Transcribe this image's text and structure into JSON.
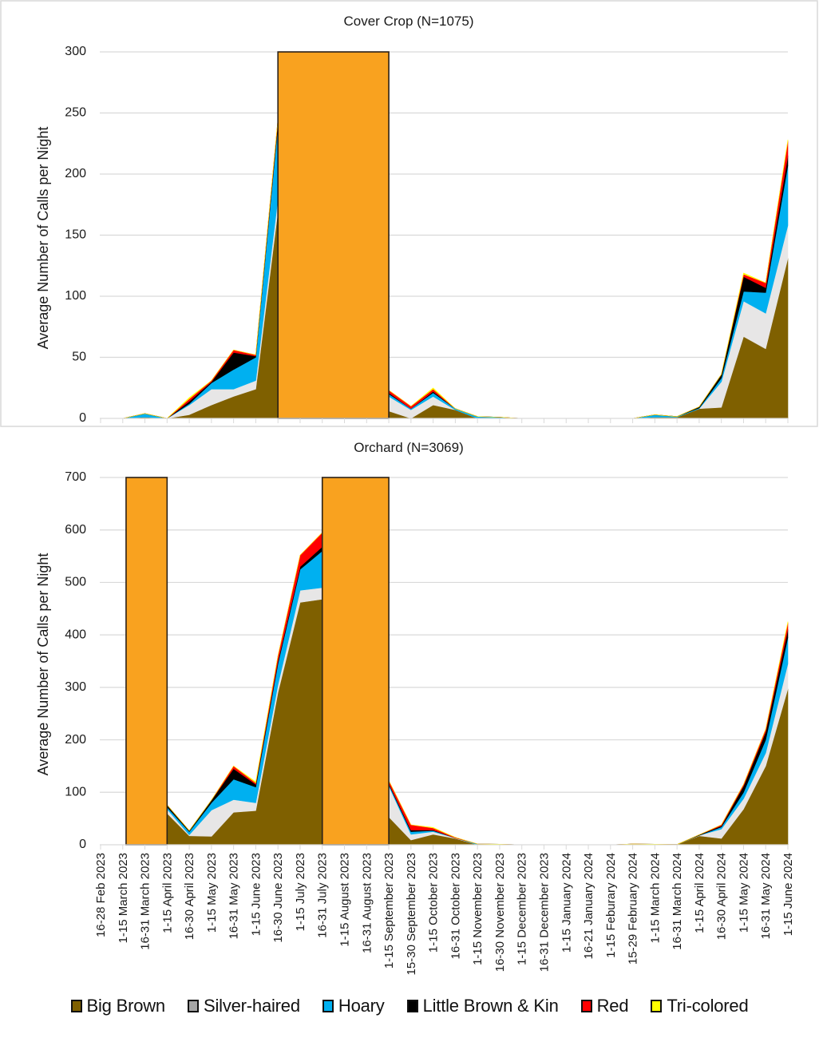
{
  "chart_data": [
    {
      "type": "area",
      "stacked": true,
      "title": "Cover Crop (N=1075)",
      "xlabel": "",
      "ylabel": "Average Number of Calls per Night",
      "ylim": [
        0,
        300
      ],
      "yticks": [
        0,
        50,
        100,
        150,
        200,
        250,
        300
      ],
      "grid": true,
      "no_data_spans": [
        {
          "from_category": 8,
          "to_category": 13,
          "top_value": 300
        }
      ],
      "series": [
        {
          "name": "Big Brown",
          "values": [
            null,
            0,
            1,
            0,
            3,
            11,
            18,
            24,
            170,
            null,
            null,
            null,
            null,
            6,
            0,
            11,
            7,
            0,
            0.5,
            0,
            0,
            0,
            0,
            0,
            0,
            1,
            1,
            8,
            9,
            67,
            57,
            131
          ]
        },
        {
          "name": "Silver-haired",
          "values": [
            null,
            0,
            0,
            0,
            8,
            13,
            6,
            7,
            10,
            null,
            null,
            null,
            null,
            12,
            7,
            7,
            0,
            0,
            0,
            0,
            0,
            0,
            0,
            0,
            0,
            0,
            0,
            0,
            21,
            29,
            29,
            27
          ]
        },
        {
          "name": "Hoary",
          "values": [
            null,
            0,
            3,
            0,
            1,
            5,
            16,
            19,
            60,
            null,
            null,
            null,
            null,
            2,
            1,
            3,
            1,
            1.5,
            0.5,
            0,
            0,
            0,
            0,
            0,
            0,
            2,
            0.5,
            0.5,
            3,
            8,
            17,
            49
          ]
        },
        {
          "name": "Little Brown & Kin",
          "values": [
            null,
            0,
            0,
            0,
            2,
            1,
            14,
            1,
            3,
            null,
            null,
            null,
            null,
            1,
            0,
            1,
            0,
            0,
            0,
            0,
            0,
            0,
            0,
            0,
            0,
            0,
            0,
            1,
            3,
            12,
            4,
            8
          ]
        },
        {
          "name": "Red",
          "values": [
            null,
            0,
            0,
            0,
            2,
            1,
            2,
            1,
            2,
            null,
            null,
            null,
            null,
            2,
            2,
            2,
            0,
            0,
            0,
            0,
            0,
            0,
            0,
            0,
            0,
            0,
            0,
            0,
            0,
            2,
            4,
            12
          ]
        },
        {
          "name": "Tri-colored",
          "values": [
            null,
            0,
            0,
            0,
            1,
            0,
            0,
            0,
            0,
            null,
            null,
            null,
            null,
            0,
            0,
            1,
            0,
            0,
            0,
            0,
            0,
            0,
            0,
            0,
            0,
            0,
            0,
            0,
            0,
            1,
            0,
            1
          ]
        }
      ]
    },
    {
      "type": "area",
      "stacked": true,
      "title": "Orchard (N=3069)",
      "xlabel": "",
      "ylabel": "Average Number of Calls per Night",
      "ylim": [
        0,
        700
      ],
      "yticks": [
        0,
        100,
        200,
        300,
        400,
        500,
        600,
        700
      ],
      "grid": true,
      "no_data_spans": [
        {
          "from_category": 1.15,
          "to_category": 3,
          "top_value": 700
        },
        {
          "from_category": 10,
          "to_category": 13,
          "top_value": 700
        }
      ],
      "series": [
        {
          "name": "Big Brown",
          "values": [
            null,
            null,
            null,
            60,
            17,
            16,
            62,
            65,
            290,
            462,
            468,
            null,
            null,
            53,
            9,
            20,
            12,
            0,
            0,
            0,
            0,
            0,
            0,
            0,
            0,
            0.5,
            0.5,
            17,
            12,
            68,
            150,
            297
          ]
        },
        {
          "name": "Silver-haired",
          "values": [
            null,
            null,
            null,
            8,
            2,
            50,
            24,
            15,
            15,
            23,
            22,
            null,
            null,
            59,
            11,
            5,
            1,
            0,
            0,
            0,
            0,
            0,
            0,
            0,
            0,
            0,
            0,
            1,
            18,
            20,
            25,
            48
          ]
        },
        {
          "name": "Hoary",
          "values": [
            null,
            null,
            null,
            4,
            6,
            14,
            39,
            30,
            40,
            40,
            70,
            null,
            null,
            3,
            5,
            2,
            0,
            1.5,
            1,
            0,
            0,
            0,
            0,
            0,
            1.5,
            0.5,
            0,
            0,
            4,
            12,
            25,
            50
          ]
        },
        {
          "name": "Little Brown & Kin",
          "values": [
            null,
            null,
            null,
            4,
            2,
            5,
            20,
            5,
            5,
            5,
            8,
            null,
            null,
            2,
            3,
            1,
            0,
            0,
            0,
            0,
            0,
            0,
            0,
            0,
            0,
            0,
            0,
            1,
            2,
            12,
            15,
            15
          ]
        },
        {
          "name": "Red",
          "values": [
            null,
            null,
            null,
            0,
            0,
            0,
            5,
            3,
            10,
            22,
            27,
            null,
            null,
            5,
            10,
            4,
            1,
            0,
            0,
            0,
            0,
            0,
            0,
            0,
            0,
            0,
            0,
            0,
            2,
            3,
            5,
            13
          ]
        },
        {
          "name": "Tri-colored",
          "values": [
            null,
            null,
            null,
            0,
            0,
            0,
            0,
            2,
            0,
            0,
            0,
            null,
            null,
            0,
            0,
            1,
            0,
            0,
            0,
            0,
            0,
            0,
            0,
            0,
            0,
            0,
            0,
            0,
            0,
            0,
            0,
            2
          ]
        }
      ]
    }
  ],
  "categories": [
    "16-28 Feb 2023",
    "1-15 March 2023",
    "16-31 March 2023",
    "1-15 April 2023",
    "16-30 April 2023",
    "1-15 May 2023",
    "16-31 May 2023",
    "1-15 June 2023",
    "16-30 June 2023",
    "1-15 July 2023",
    "16-31 July 2023",
    "1-15 August 2023",
    "16-31 August 2023",
    "1-15 September 2023",
    "15-30 September 2023",
    "1-15 October 2023",
    "16-31 October 2023",
    "1-15 November 2023",
    "16-30 November 2023",
    "1-15 December 2023",
    "16-31 December 2023",
    "1-15 January 2024",
    "16-21 January 2024",
    "1-15 Feburary 2024",
    "15-29 February 2024",
    "1-15 March 2024",
    "16-31 March 2024",
    "1-15 April 2024",
    "16-30 April 2024",
    "1-15 May 2024",
    "16-31 May 2024",
    "1-15 June 2024"
  ],
  "legend": {
    "placement": "bottom",
    "items": [
      {
        "label": "Big Brown",
        "color": "#7F6000",
        "swatch": "#7F6000"
      },
      {
        "label": "Silver-haired",
        "color": "#E7E6E6",
        "swatch": "#A6A6A6"
      },
      {
        "label": "Hoary",
        "color": "#00B0F0",
        "swatch": "#00B0F0"
      },
      {
        "label": "Little Brown & Kin",
        "color": "#000000",
        "swatch": "#000000"
      },
      {
        "label": "Red",
        "color": "#FF0000",
        "swatch": "#FF0000"
      },
      {
        "label": "Tri-colored",
        "color": "#FFFF00",
        "swatch": "#FFFF00"
      }
    ]
  },
  "no_data_color": "#F9A21F"
}
